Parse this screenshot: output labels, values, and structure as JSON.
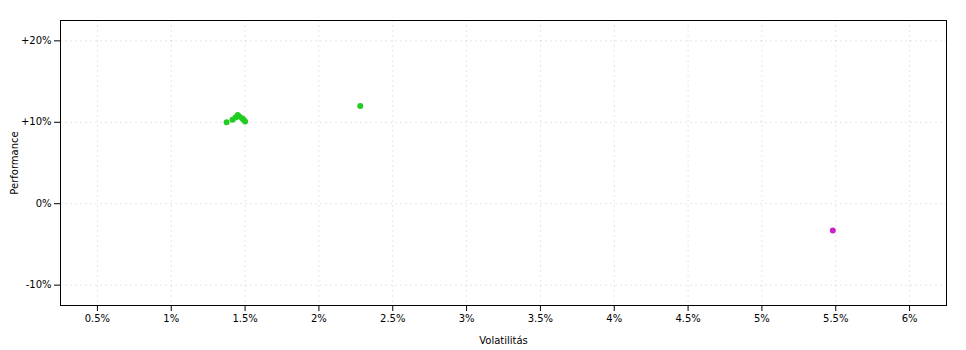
{
  "chart_data": {
    "type": "scatter",
    "xlabel": "Volatilitás",
    "ylabel": "Performance",
    "xlim": [
      0.0025,
      0.0625
    ],
    "ylim": [
      -0.125,
      0.225
    ],
    "xticks": [
      {
        "value": 0.005,
        "label": "0.5%"
      },
      {
        "value": 0.01,
        "label": "1%"
      },
      {
        "value": 0.015,
        "label": "1.5%"
      },
      {
        "value": 0.02,
        "label": "2%"
      },
      {
        "value": 0.025,
        "label": "2.5%"
      },
      {
        "value": 0.03,
        "label": "3%"
      },
      {
        "value": 0.035,
        "label": "3.5%"
      },
      {
        "value": 0.04,
        "label": "4%"
      },
      {
        "value": 0.045,
        "label": "4.5%"
      },
      {
        "value": 0.05,
        "label": "5%"
      },
      {
        "value": 0.055,
        "label": "5.5%"
      },
      {
        "value": 0.06,
        "label": "6%"
      }
    ],
    "yticks": [
      {
        "value": -0.1,
        "label": "-10%"
      },
      {
        "value": 0.0,
        "label": "0%"
      },
      {
        "value": 0.1,
        "label": "+10%"
      },
      {
        "value": 0.2,
        "label": "+20%"
      }
    ],
    "grid": true,
    "series": [
      {
        "color": "#22cc22",
        "x": [
          0.01375,
          0.01415,
          0.01435,
          0.0145,
          0.0146,
          0.0148,
          0.0149,
          0.015,
          0.0228
        ],
        "values": [
          0.1,
          0.103,
          0.106,
          0.109,
          0.107,
          0.105,
          0.103,
          0.101,
          0.12
        ]
      },
      {
        "color": "#cc22cc",
        "x": [
          0.0548
        ],
        "values": [
          -0.033
        ]
      }
    ]
  }
}
